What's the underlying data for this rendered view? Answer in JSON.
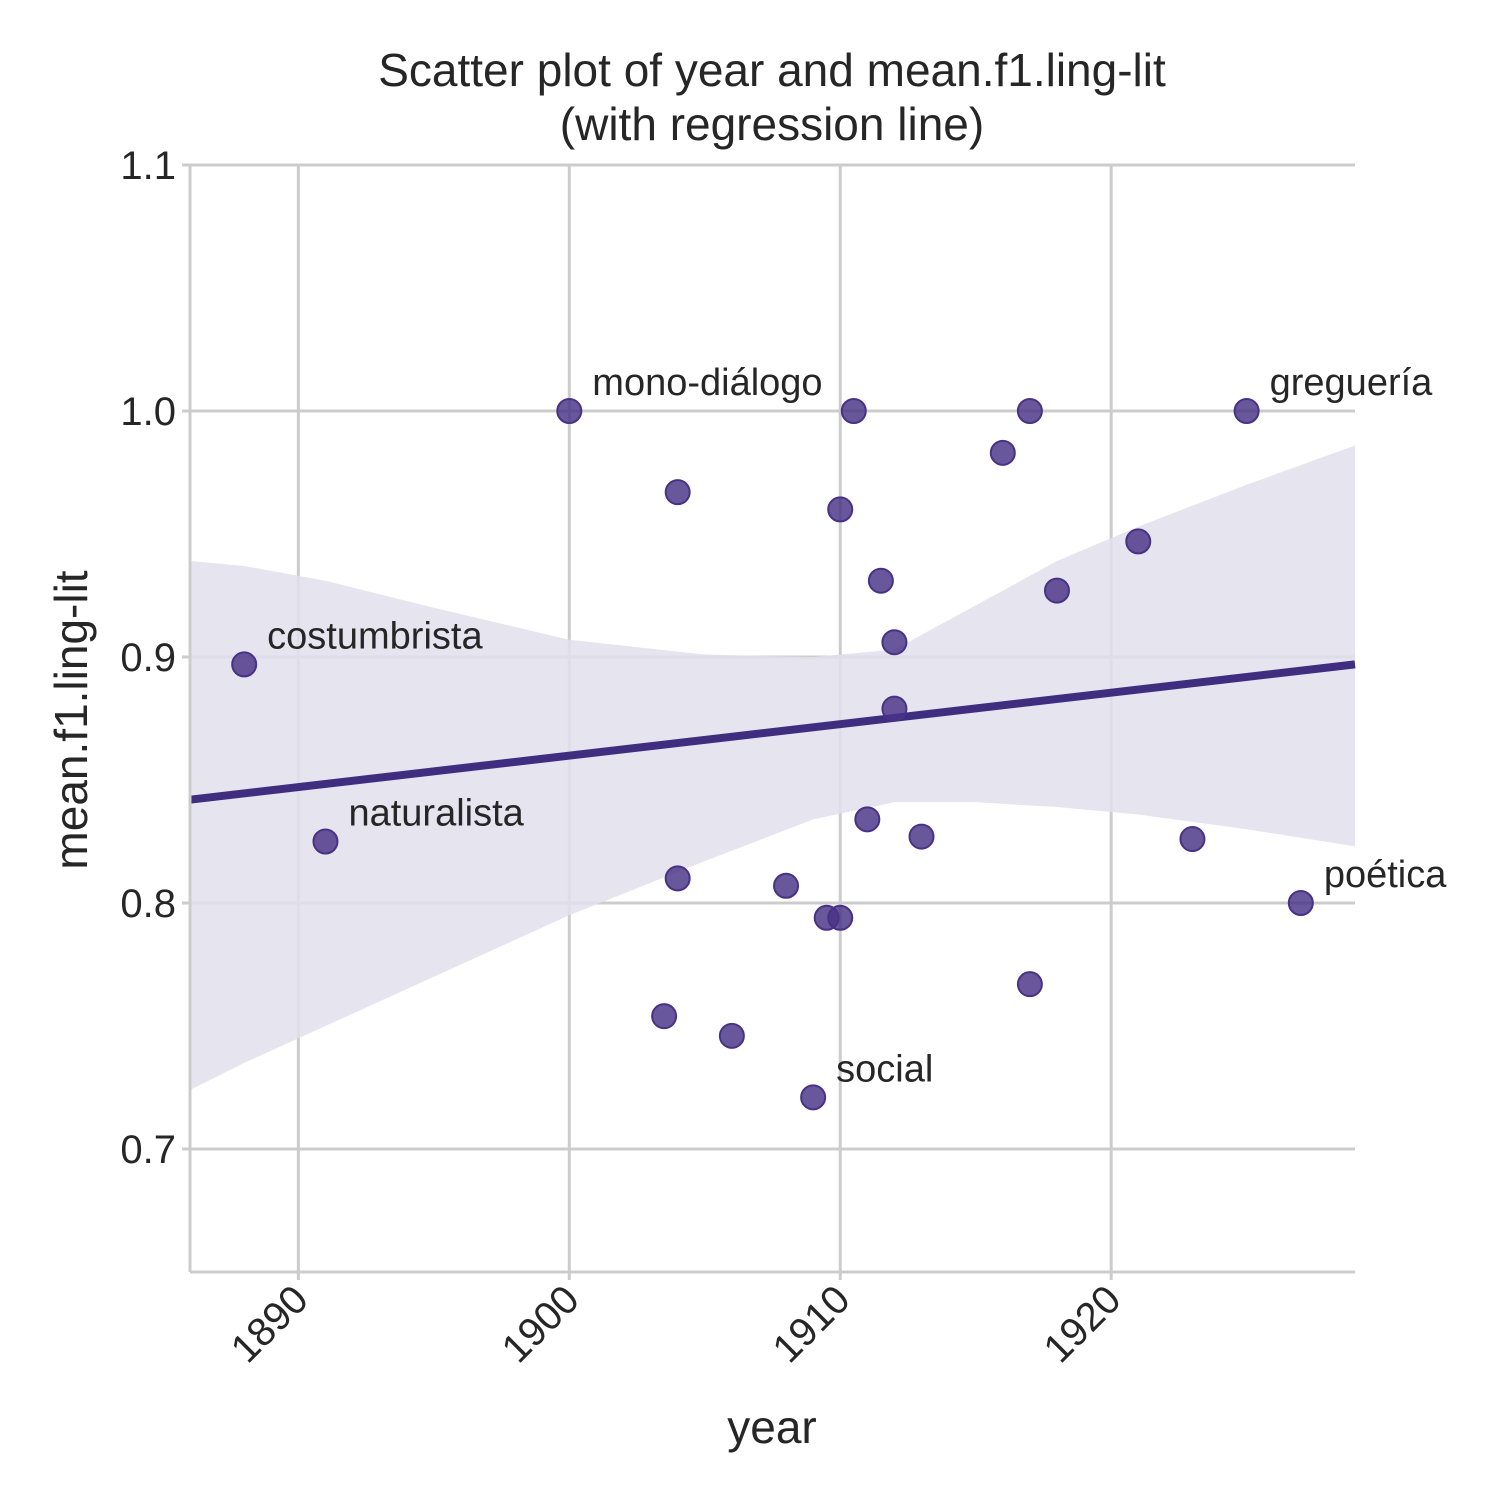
{
  "chart_data": {
    "type": "scatter",
    "title": "Scatter plot of year and mean.f1.ling-lit",
    "subtitle": "(with regression line)",
    "xlabel": "year",
    "ylabel": "mean.f1.ling-lit",
    "xlim": [
      1886,
      1929
    ],
    "ylim": [
      0.65,
      1.1
    ],
    "xticks": [
      1890,
      1900,
      1910,
      1920
    ],
    "xtick_labels": [
      "1890",
      "1900",
      "1910",
      "1920"
    ],
    "yticks": [
      0.7,
      0.8,
      0.9,
      1.0,
      1.1
    ],
    "ytick_labels": [
      "0.7",
      "0.8",
      "0.9",
      "1.0",
      "1.1"
    ],
    "grid": true,
    "colors": {
      "points": "#483285",
      "line": "#3f2e7f",
      "band": "#e2dfec",
      "grid": "#cccccc",
      "axis": "#cccccc"
    },
    "points": [
      {
        "x": 1888,
        "y": 0.897
      },
      {
        "x": 1891,
        "y": 0.825
      },
      {
        "x": 1900,
        "y": 1.0
      },
      {
        "x": 1903.5,
        "y": 0.754
      },
      {
        "x": 1904,
        "y": 0.967
      },
      {
        "x": 1904,
        "y": 0.81
      },
      {
        "x": 1906,
        "y": 0.746
      },
      {
        "x": 1908,
        "y": 0.807
      },
      {
        "x": 1909,
        "y": 0.721
      },
      {
        "x": 1909.5,
        "y": 0.794
      },
      {
        "x": 1910,
        "y": 0.794
      },
      {
        "x": 1910,
        "y": 0.96
      },
      {
        "x": 1910.5,
        "y": 1.0
      },
      {
        "x": 1911,
        "y": 0.834
      },
      {
        "x": 1911.5,
        "y": 0.931
      },
      {
        "x": 1912,
        "y": 0.906
      },
      {
        "x": 1912,
        "y": 0.879
      },
      {
        "x": 1913,
        "y": 0.827
      },
      {
        "x": 1916,
        "y": 0.983
      },
      {
        "x": 1917,
        "y": 1.0
      },
      {
        "x": 1917,
        "y": 0.767
      },
      {
        "x": 1918,
        "y": 0.927
      },
      {
        "x": 1921,
        "y": 0.947
      },
      {
        "x": 1923,
        "y": 0.826
      },
      {
        "x": 1925,
        "y": 1.0
      },
      {
        "x": 1927,
        "y": 0.8
      }
    ],
    "regression": {
      "x": [
        1886,
        1929
      ],
      "y": [
        0.842,
        0.897
      ]
    },
    "ci_band": {
      "x": [
        1886,
        1888,
        1891,
        1895,
        1900,
        1905,
        1909,
        1912,
        1915,
        1918,
        1921,
        1925,
        1929
      ],
      "lower": [
        0.724,
        0.735,
        0.75,
        0.77,
        0.795,
        0.817,
        0.834,
        0.841,
        0.841,
        0.839,
        0.836,
        0.83,
        0.823
      ],
      "upper": [
        0.939,
        0.937,
        0.931,
        0.92,
        0.907,
        0.901,
        0.9,
        0.903,
        0.921,
        0.939,
        0.953,
        0.97,
        0.986
      ]
    },
    "annotations": [
      {
        "text": "costumbrista",
        "x": 1888,
        "y": 0.897
      },
      {
        "text": "naturalista",
        "x": 1891,
        "y": 0.825
      },
      {
        "text": "mono-diálogo",
        "x": 1900,
        "y": 1.0
      },
      {
        "text": "social",
        "x": 1909,
        "y": 0.721
      },
      {
        "text": "greguería",
        "x": 1925,
        "y": 1.0
      },
      {
        "text": "poética",
        "x": 1927,
        "y": 0.8
      }
    ]
  }
}
